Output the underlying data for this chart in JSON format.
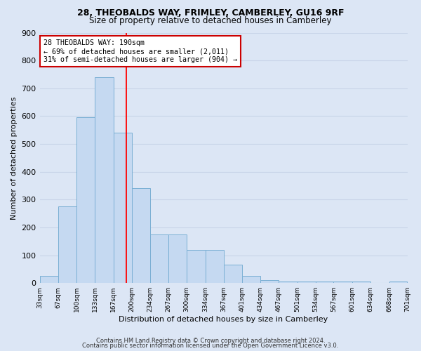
{
  "title1": "28, THEOBALDS WAY, FRIMLEY, CAMBERLEY, GU16 9RF",
  "title2": "Size of property relative to detached houses in Camberley",
  "xlabel": "Distribution of detached houses by size in Camberley",
  "ylabel": "Number of detached properties",
  "bin_edges": [
    33,
    67,
    100,
    133,
    167,
    200,
    234,
    267,
    300,
    334,
    367,
    401,
    434,
    467,
    501,
    534,
    567,
    601,
    634,
    668,
    701
  ],
  "bar_heights": [
    25,
    275,
    595,
    740,
    540,
    340,
    175,
    175,
    120,
    120,
    65,
    25,
    10,
    5,
    5,
    5,
    5,
    5,
    0,
    5
  ],
  "bar_color": "#c5d9f1",
  "bar_edge_color": "#7aafd4",
  "grid_color": "#c8d4e8",
  "bg_color": "#dce6f5",
  "red_line_x": 190,
  "annotation_text": "28 THEOBALDS WAY: 190sqm\n← 69% of detached houses are smaller (2,011)\n31% of semi-detached houses are larger (904) →",
  "annotation_box_color": "#ffffff",
  "annotation_box_edge": "#cc0000",
  "ylim": [
    0,
    900
  ],
  "yticks": [
    0,
    100,
    200,
    300,
    400,
    500,
    600,
    700,
    800,
    900
  ],
  "tick_labels": [
    "33sqm",
    "67sqm",
    "100sqm",
    "133sqm",
    "167sqm",
    "200sqm",
    "234sqm",
    "267sqm",
    "300sqm",
    "334sqm",
    "367sqm",
    "401sqm",
    "434sqm",
    "467sqm",
    "501sqm",
    "534sqm",
    "567sqm",
    "601sqm",
    "634sqm",
    "668sqm",
    "701sqm"
  ],
  "footnote1": "Contains HM Land Registry data © Crown copyright and database right 2024.",
  "footnote2": "Contains public sector information licensed under the Open Government Licence v3.0."
}
